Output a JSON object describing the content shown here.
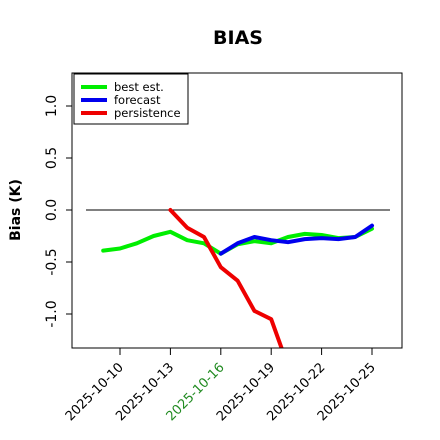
{
  "chart_data": {
    "type": "line",
    "title": "BIAS",
    "xlabel": "",
    "ylabel": "Bias (K)",
    "x_tick_labels": [
      "2025-10-10",
      "2025-10-13",
      "2025-10-16",
      "2025-10-19",
      "2025-10-22",
      "2025-10-25"
    ],
    "highlighted_tick": "2025-10-16",
    "highlight_color": "#228B22",
    "y_ticks": [
      -1.0,
      -0.5,
      0.0,
      0.5,
      1.0
    ],
    "y_tick_labels": [
      "-1.0",
      "-0.5",
      "0.0",
      "0.5",
      "1.0"
    ],
    "xlim": [
      "2025-10-09",
      "2025-10-26"
    ],
    "ylim": [
      -1.35,
      1.35
    ],
    "zero_line": true,
    "grid": false,
    "legend_position": "top-left",
    "series": [
      {
        "name": "best est.",
        "color": "#00ee00",
        "points": [
          [
            "2025-10-09",
            -0.39
          ],
          [
            "2025-10-10",
            -0.37
          ],
          [
            "2025-10-11",
            -0.32
          ],
          [
            "2025-10-12",
            -0.25
          ],
          [
            "2025-10-13",
            -0.21
          ],
          [
            "2025-10-14",
            -0.29
          ],
          [
            "2025-10-15",
            -0.32
          ],
          [
            "2025-10-16",
            -0.42
          ],
          [
            "2025-10-17",
            -0.33
          ],
          [
            "2025-10-18",
            -0.3
          ],
          [
            "2025-10-19",
            -0.32
          ],
          [
            "2025-10-20",
            -0.26
          ],
          [
            "2025-10-21",
            -0.23
          ],
          [
            "2025-10-22",
            -0.24
          ],
          [
            "2025-10-23",
            -0.27
          ],
          [
            "2025-10-24",
            -0.26
          ],
          [
            "2025-10-25",
            -0.18
          ]
        ]
      },
      {
        "name": "forecast",
        "color": "#0000ee",
        "points": [
          [
            "2025-10-16",
            -0.42
          ],
          [
            "2025-10-17",
            -0.32
          ],
          [
            "2025-10-18",
            -0.26
          ],
          [
            "2025-10-19",
            -0.29
          ],
          [
            "2025-10-20",
            -0.31
          ],
          [
            "2025-10-21",
            -0.28
          ],
          [
            "2025-10-22",
            -0.27
          ],
          [
            "2025-10-23",
            -0.28
          ],
          [
            "2025-10-24",
            -0.26
          ],
          [
            "2025-10-25",
            -0.15
          ]
        ]
      },
      {
        "name": "persistence",
        "color": "#ee0000",
        "points": [
          [
            "2025-10-13",
            0.0
          ],
          [
            "2025-10-14",
            -0.17
          ],
          [
            "2025-10-15",
            -0.26
          ],
          [
            "2025-10-16",
            -0.55
          ],
          [
            "2025-10-17",
            -0.68
          ],
          [
            "2025-10-18",
            -0.97
          ],
          [
            "2025-10-19",
            -1.05
          ],
          [
            "2025-10-20",
            -1.5
          ]
        ]
      }
    ]
  }
}
